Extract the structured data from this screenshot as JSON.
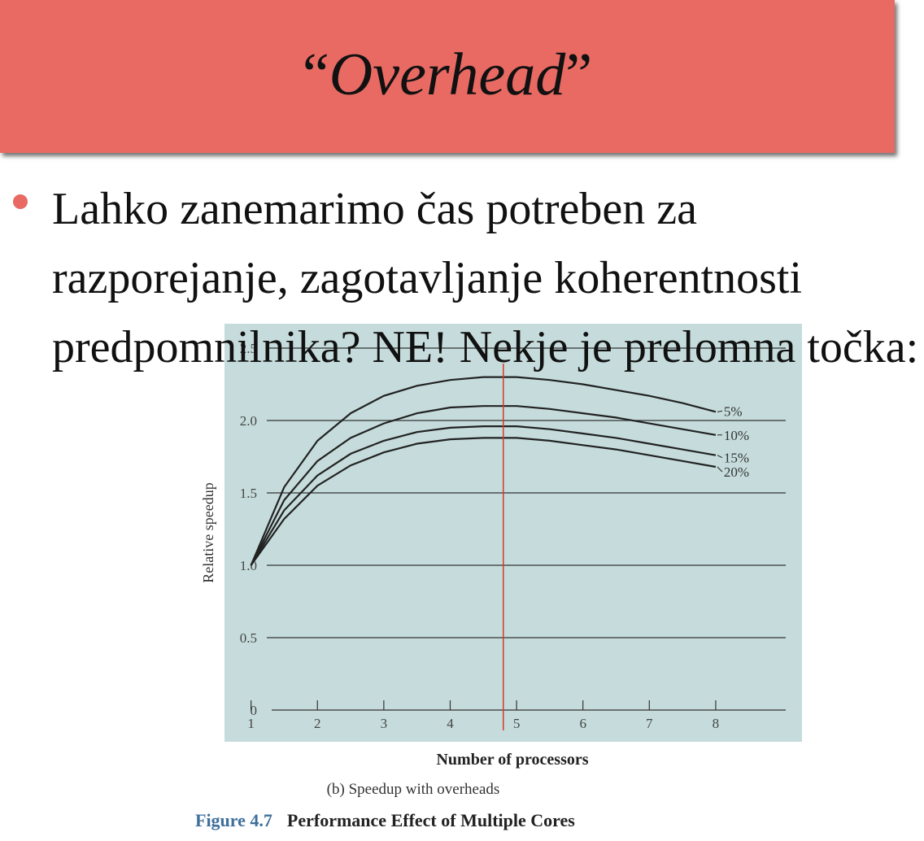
{
  "slide": {
    "title_open": "“",
    "title_word": "Overhead",
    "title_close": "”",
    "bullet_text": "Lahko zanemarimo čas potreben za razporejanje, zagotavljanje koherentnosti predpomnilnika? NE! Nekje je prelomna točka:"
  },
  "colors": {
    "title_bar": "#e86a63",
    "bullet": "#e86a63",
    "chart_background": "#c6dcdc",
    "marker_line": "#d23a2a",
    "figure_label": "#3f6f9a"
  },
  "chart_data": {
    "type": "line",
    "xlabel": "Number of processors",
    "ylabel": "Relative speedup",
    "xlim": [
      0.6,
      9.3
    ],
    "ylim": [
      0,
      2.5
    ],
    "x_ticks": [
      1,
      2,
      3,
      4,
      5,
      6,
      7,
      8
    ],
    "y_ticks": [
      {
        "value": 0,
        "label": "0"
      },
      {
        "value": 0.5,
        "label": "0.5"
      },
      {
        "value": 1.0,
        "label": "1.0"
      },
      {
        "value": 1.5,
        "label": "1.5"
      },
      {
        "value": 2.0,
        "label": "2.0"
      },
      {
        "value": 2.5,
        "label": "2.5"
      }
    ],
    "grid": "horizontal",
    "x": [
      1,
      1.5,
      2,
      2.5,
      3,
      3.5,
      4,
      4.5,
      5,
      5.5,
      6,
      6.5,
      7,
      7.5,
      8
    ],
    "series": [
      {
        "name": "5%",
        "values": [
          1.0,
          1.54,
          1.86,
          2.05,
          2.17,
          2.24,
          2.28,
          2.3,
          2.3,
          2.28,
          2.25,
          2.21,
          2.17,
          2.12,
          2.06
        ]
      },
      {
        "name": "10%",
        "values": [
          1.0,
          1.45,
          1.72,
          1.88,
          1.98,
          2.05,
          2.09,
          2.1,
          2.1,
          2.08,
          2.05,
          2.02,
          1.98,
          1.94,
          1.9
        ]
      },
      {
        "name": "15%",
        "values": [
          1.0,
          1.38,
          1.62,
          1.77,
          1.86,
          1.92,
          1.95,
          1.96,
          1.96,
          1.94,
          1.91,
          1.88,
          1.84,
          1.8,
          1.76
        ]
      },
      {
        "name": "20%",
        "values": [
          1.0,
          1.32,
          1.55,
          1.69,
          1.78,
          1.84,
          1.87,
          1.88,
          1.88,
          1.86,
          1.83,
          1.8,
          1.76,
          1.72,
          1.68
        ]
      }
    ],
    "marker_x": 4.8,
    "subtitle": "(b) Speedup with overheads",
    "figure_number": "Figure 4.7",
    "figure_title": "Performance Effect of Multiple Cores"
  }
}
